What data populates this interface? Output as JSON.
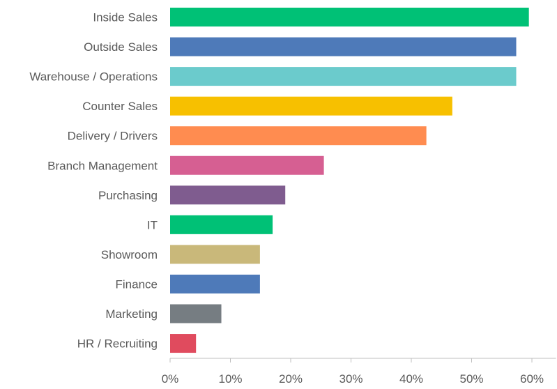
{
  "chart_data": {
    "type": "bar",
    "orientation": "horizontal",
    "categories": [
      "Inside Sales",
      "Outside Sales",
      "Warehouse / Operations",
      "Counter Sales",
      "Delivery / Drivers",
      "Branch Management",
      "Purchasing",
      "IT",
      "Showroom",
      "Finance",
      "Marketing",
      "HR / Recruiting"
    ],
    "values": [
      59.5,
      57.4,
      57.4,
      46.8,
      42.5,
      25.5,
      19.1,
      17.0,
      14.9,
      14.9,
      8.5,
      4.3
    ],
    "colors": [
      "#00c176",
      "#4e7ab9",
      "#6bcbcc",
      "#f7c000",
      "#ff8c50",
      "#d65f92",
      "#7f5c8f",
      "#00c176",
      "#c9b87a",
      "#4e7ab9",
      "#767d82",
      "#e04b5e"
    ],
    "x_ticks": [
      "0%",
      "10%",
      "20%",
      "30%",
      "40%",
      "50%",
      "60%"
    ],
    "xlim": [
      0,
      64
    ],
    "value_unit": "%",
    "title": "",
    "xlabel": "",
    "ylabel": "",
    "grid": false,
    "legend": "none"
  }
}
